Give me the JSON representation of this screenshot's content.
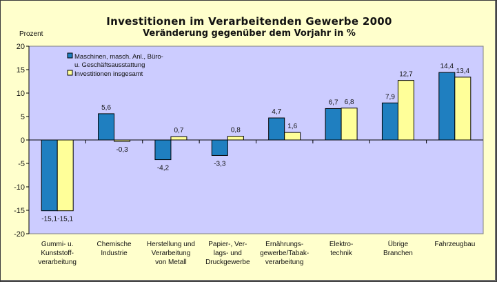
{
  "chart_data": {
    "type": "bar",
    "title": "Investitionen im Verarbeitenden Gewerbe 2000",
    "subtitle": "Veränderung gegenüber dem Vorjahr in %",
    "ylabel": "Prozent",
    "ylim": [
      -20,
      20
    ],
    "yticks": [
      -20,
      -15,
      -10,
      -5,
      0,
      5,
      10,
      15,
      20
    ],
    "categories": [
      [
        "Gummi- u.",
        "Kunststoff-",
        "verarbeitung"
      ],
      [
        "Chemische",
        "Industrie"
      ],
      [
        "Herstellung und",
        "Verarbeitung",
        "von Metall"
      ],
      [
        "Papier-, Ver-",
        "lags- und",
        "Druckgewerbe"
      ],
      [
        "Ernährungs-",
        "gewerbe/Tabak-",
        "verarbeitung"
      ],
      [
        "Elektro-",
        "technik"
      ],
      [
        "Übrige",
        "Branchen"
      ],
      [
        "Fahrzeugbau"
      ]
    ],
    "series": [
      {
        "name": [
          "Maschinen, masch. Anl., Büro-",
          "u. Geschäftsausstattung"
        ],
        "color": "#1f7fc0",
        "values": [
          -15.1,
          5.6,
          -4.2,
          -3.3,
          4.7,
          6.7,
          7.9,
          14.4
        ],
        "labels": [
          "-15,1",
          "5,6",
          "-4,2",
          "-3,3",
          "4,7",
          "6,7",
          "7,9",
          "14,4"
        ]
      },
      {
        "name": [
          "Investitionen insgesamt"
        ],
        "color": "#ffff99",
        "values": [
          -15.1,
          -0.3,
          0.7,
          0.8,
          1.6,
          6.8,
          12.7,
          13.4
        ],
        "labels": [
          "-15,1",
          "-0,3",
          "0,7",
          "0,8",
          "1,6",
          "6,8",
          "12,7",
          "13,4"
        ]
      }
    ],
    "grid": false,
    "legend": "top-left",
    "plot_background": "#ccccff"
  }
}
